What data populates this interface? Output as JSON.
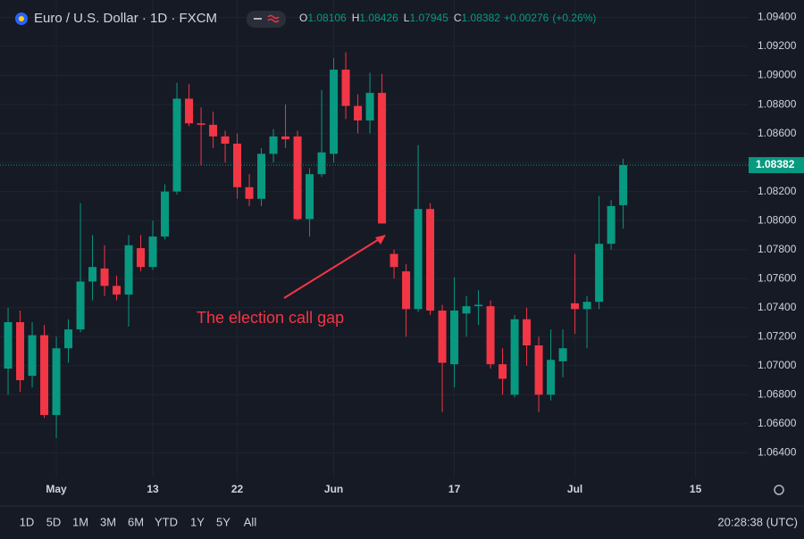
{
  "chart_data": {
    "type": "candlestick",
    "title": "Euro / U.S. Dollar · 1D · FXCM",
    "ohlc_labels": [
      "O",
      "H",
      "L",
      "C"
    ],
    "change": "+0.00276",
    "change_percent": "(+0.26%)",
    "annotation": "The election call gap",
    "colors": {
      "up": "#089981",
      "down": "#f23645"
    },
    "grid": true,
    "series": {
      "open": [
        1.0698,
        1.073,
        1.0693,
        1.0721,
        1.0666,
        1.0712,
        1.0725,
        1.0758,
        1.0767,
        1.0755,
        1.0749,
        1.0781,
        1.0768,
        1.0789,
        1.082,
        1.0884,
        1.0867,
        1.0866,
        1.0858,
        1.0853,
        1.0823,
        1.0815,
        1.0846,
        1.0858,
        1.0858,
        1.0801,
        1.0832,
        1.0846,
        1.0904,
        1.0879,
        1.0869,
        1.0888,
        1.0777,
        1.0765,
        1.0739,
        1.0808,
        1.0738,
        1.0701,
        1.0736,
        1.0741,
        1.0741,
        1.0701,
        1.068,
        1.0732,
        1.0714,
        1.068,
        1.0703,
        1.0743,
        1.0739,
        1.0744,
        1.0784,
        1.08106
      ],
      "high": [
        1.074,
        1.0738,
        1.073,
        1.0728,
        1.072,
        1.0732,
        1.0812,
        1.079,
        1.0783,
        1.0762,
        1.079,
        1.079,
        1.08,
        1.0825,
        1.0895,
        1.0894,
        1.0878,
        1.0875,
        1.0862,
        1.086,
        1.0832,
        1.085,
        1.0863,
        1.088,
        1.0862,
        1.0836,
        1.089,
        1.0912,
        1.0916,
        1.0887,
        1.0902,
        1.0901,
        1.078,
        1.077,
        1.0852,
        1.0812,
        1.0742,
        1.0761,
        1.0748,
        1.0752,
        1.0745,
        1.0712,
        1.0735,
        1.074,
        1.072,
        1.0725,
        1.0725,
        1.0777,
        1.0748,
        1.0817,
        1.0814,
        1.08426
      ],
      "low": [
        1.068,
        1.0682,
        1.0685,
        1.0664,
        1.065,
        1.0702,
        1.0723,
        1.0745,
        1.0748,
        1.0745,
        1.0727,
        1.0765,
        1.0766,
        1.0787,
        1.0818,
        1.0865,
        1.0838,
        1.085,
        1.084,
        1.0815,
        1.081,
        1.081,
        1.084,
        1.085,
        1.08,
        1.0789,
        1.083,
        1.084,
        1.087,
        1.086,
        1.086,
        1.0798,
        1.076,
        1.072,
        1.0737,
        1.0735,
        1.0668,
        1.0685,
        1.072,
        1.0728,
        1.0698,
        1.068,
        1.0678,
        1.07,
        1.0668,
        1.0676,
        1.0692,
        1.0722,
        1.0712,
        1.0739,
        1.078,
        1.07945
      ],
      "close": [
        1.073,
        1.069,
        1.0721,
        1.0666,
        1.0712,
        1.0725,
        1.0758,
        1.0768,
        1.0755,
        1.0749,
        1.0783,
        1.0768,
        1.0789,
        1.082,
        1.0884,
        1.0867,
        1.0866,
        1.0858,
        1.0853,
        1.0823,
        1.0815,
        1.0846,
        1.0858,
        1.0856,
        1.0801,
        1.0832,
        1.0847,
        1.0904,
        1.0879,
        1.0869,
        1.0888,
        1.0798,
        1.0768,
        1.0739,
        1.0808,
        1.0738,
        1.0702,
        1.0738,
        1.0741,
        1.0742,
        1.0701,
        1.0691,
        1.0732,
        1.0714,
        1.068,
        1.0704,
        1.0712,
        1.0739,
        1.0744,
        1.0784,
        1.081,
        1.08382
      ]
    },
    "xlim": [
      -0.67,
      61.4
    ],
    "xticks": [
      {
        "value": 4,
        "label": "May"
      },
      {
        "value": 12,
        "label": "13"
      },
      {
        "value": 19,
        "label": "22"
      },
      {
        "value": 27,
        "label": "Jun"
      },
      {
        "value": 37,
        "label": "17"
      },
      {
        "value": 47,
        "label": "Jul"
      },
      {
        "value": 57,
        "label": "15"
      }
    ],
    "ylim": [
      1.0623,
      1.0952
    ],
    "yticks": [
      {
        "value": 1.064,
        "label": "1.06400"
      },
      {
        "value": 1.066,
        "label": "1.06600"
      },
      {
        "value": 1.068,
        "label": "1.06800"
      },
      {
        "value": 1.07,
        "label": "1.07000"
      },
      {
        "value": 1.072,
        "label": "1.07200"
      },
      {
        "value": 1.074,
        "label": "1.07400"
      },
      {
        "value": 1.076,
        "label": "1.07600"
      },
      {
        "value": 1.078,
        "label": "1.07800"
      },
      {
        "value": 1.08,
        "label": "1.08000"
      },
      {
        "value": 1.082,
        "label": "1.08200"
      },
      {
        "value": 1.084,
        "label": "1.08400"
      },
      {
        "value": 1.086,
        "label": "1.08600"
      },
      {
        "value": 1.088,
        "label": "1.08800"
      },
      {
        "value": 1.09,
        "label": "1.09000"
      },
      {
        "value": 1.092,
        "label": "1.09200"
      },
      {
        "value": 1.094,
        "label": "1.09400"
      }
    ]
  },
  "toolbar": {
    "intervals": [
      "1D",
      "5D",
      "1M",
      "3M",
      "6M",
      "YTD",
      "1Y",
      "5Y",
      "All"
    ],
    "clock": "20:28:38 (UTC)"
  }
}
